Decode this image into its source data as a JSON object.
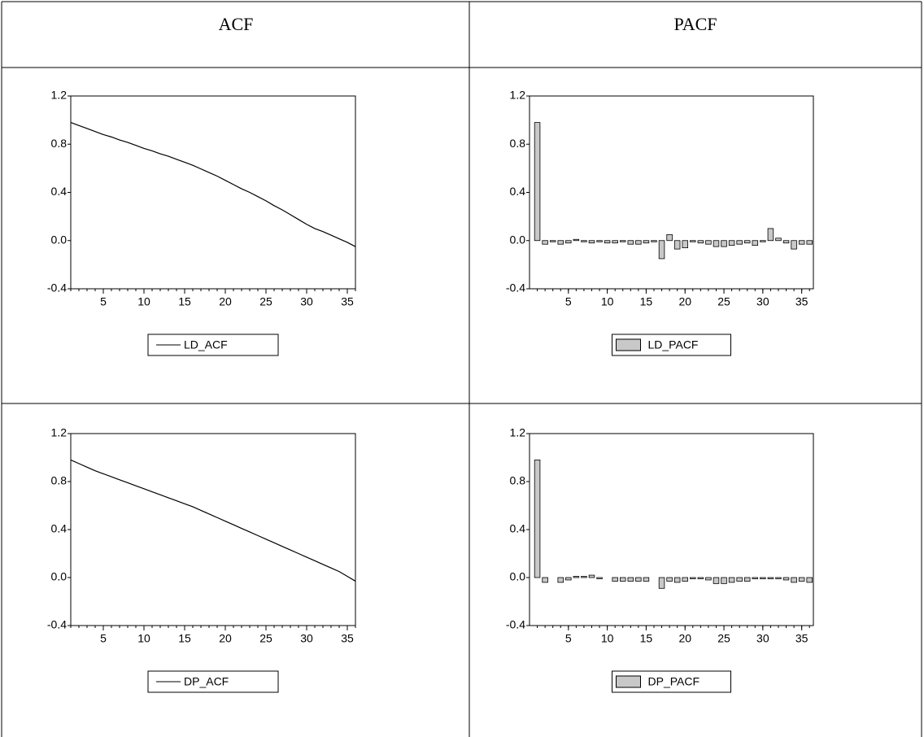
{
  "table": {
    "headers": [
      "ACF",
      "PACF"
    ]
  },
  "chart_data": [
    {
      "type": "line",
      "x": [
        1,
        2,
        3,
        4,
        5,
        6,
        7,
        8,
        9,
        10,
        11,
        12,
        13,
        14,
        15,
        16,
        17,
        18,
        19,
        20,
        21,
        22,
        23,
        24,
        25,
        26,
        27,
        28,
        29,
        30,
        31,
        32,
        33,
        34,
        35,
        36
      ],
      "series": [
        {
          "name": "LD_ACF",
          "color": "#000000",
          "values": [
            0.98,
            0.955,
            0.93,
            0.905,
            0.88,
            0.86,
            0.835,
            0.815,
            0.79,
            0.765,
            0.745,
            0.72,
            0.7,
            0.675,
            0.65,
            0.625,
            0.595,
            0.565,
            0.535,
            0.5,
            0.465,
            0.43,
            0.4,
            0.365,
            0.33,
            0.29,
            0.255,
            0.215,
            0.175,
            0.135,
            0.1,
            0.075,
            0.045,
            0.015,
            -0.015,
            -0.05
          ]
        }
      ],
      "xlim": [
        1,
        36
      ],
      "xticks": [
        5,
        10,
        15,
        20,
        25,
        30,
        35
      ],
      "ylim": [
        -0.4,
        1.2
      ],
      "yticks": [
        1.2,
        0.8,
        0.4,
        {
          "value": 0,
          "label": "0.0"
        },
        -0.4
      ]
    },
    {
      "type": "bar",
      "x": [
        1,
        2,
        3,
        4,
        5,
        6,
        7,
        8,
        9,
        10,
        11,
        12,
        13,
        14,
        15,
        16,
        17,
        18,
        19,
        20,
        21,
        22,
        23,
        24,
        25,
        26,
        27,
        28,
        29,
        30,
        31,
        32,
        33,
        34,
        35,
        36
      ],
      "series": [
        {
          "name": "LD_PACF",
          "color": "#c8c8c8",
          "values": [
            0.98,
            -0.03,
            -0.01,
            -0.03,
            -0.02,
            0.01,
            -0.01,
            -0.02,
            -0.01,
            -0.02,
            -0.02,
            -0.01,
            -0.03,
            -0.03,
            -0.02,
            -0.01,
            -0.15,
            0.05,
            -0.07,
            -0.06,
            -0.01,
            -0.02,
            -0.03,
            -0.05,
            -0.05,
            -0.04,
            -0.03,
            -0.02,
            -0.04,
            -0.01,
            0.1,
            0.02,
            -0.02,
            -0.07,
            -0.03,
            -0.03
          ]
        }
      ],
      "xlim": [
        0,
        36.5
      ],
      "xticks": [
        5,
        10,
        15,
        20,
        25,
        30,
        35
      ],
      "ylim": [
        -0.4,
        1.2
      ],
      "yticks": [
        1.2,
        0.8,
        0.4,
        {
          "value": 0,
          "label": "0.0"
        },
        -0.4
      ]
    },
    {
      "type": "line",
      "x": [
        1,
        2,
        3,
        4,
        5,
        6,
        7,
        8,
        9,
        10,
        11,
        12,
        13,
        14,
        15,
        16,
        17,
        18,
        19,
        20,
        21,
        22,
        23,
        24,
        25,
        26,
        27,
        28,
        29,
        30,
        31,
        32,
        33,
        34,
        35,
        36
      ],
      "series": [
        {
          "name": "DP_ACF",
          "color": "#000000",
          "values": [
            0.98,
            0.95,
            0.92,
            0.89,
            0.865,
            0.84,
            0.815,
            0.79,
            0.765,
            0.74,
            0.715,
            0.69,
            0.665,
            0.64,
            0.615,
            0.59,
            0.56,
            0.53,
            0.5,
            0.47,
            0.44,
            0.41,
            0.38,
            0.35,
            0.32,
            0.29,
            0.26,
            0.23,
            0.2,
            0.17,
            0.14,
            0.11,
            0.08,
            0.05,
            0.01,
            -0.03
          ]
        }
      ],
      "xlim": [
        1,
        36
      ],
      "xticks": [
        5,
        10,
        15,
        20,
        25,
        30,
        35
      ],
      "ylim": [
        -0.4,
        1.2
      ],
      "yticks": [
        1.2,
        0.8,
        0.4,
        {
          "value": 0,
          "label": "0.0"
        },
        -0.4
      ]
    },
    {
      "type": "bar",
      "x": [
        1,
        2,
        3,
        4,
        5,
        6,
        7,
        8,
        9,
        10,
        11,
        12,
        13,
        14,
        15,
        16,
        17,
        18,
        19,
        20,
        21,
        22,
        23,
        24,
        25,
        26,
        27,
        28,
        29,
        30,
        31,
        32,
        33,
        34,
        35,
        36
      ],
      "series": [
        {
          "name": "DP_PACF",
          "color": "#c8c8c8",
          "values": [
            0.98,
            -0.04,
            0.0,
            -0.04,
            -0.02,
            0.01,
            0.01,
            0.02,
            -0.01,
            0.0,
            -0.03,
            -0.03,
            -0.03,
            -0.03,
            -0.03,
            0.0,
            -0.09,
            -0.03,
            -0.04,
            -0.03,
            -0.01,
            -0.01,
            -0.02,
            -0.05,
            -0.05,
            -0.04,
            -0.03,
            -0.03,
            -0.01,
            -0.01,
            -0.01,
            -0.01,
            -0.02,
            -0.04,
            -0.03,
            -0.04
          ]
        }
      ],
      "xlim": [
        0,
        36.5
      ],
      "xticks": [
        5,
        10,
        15,
        20,
        25,
        30,
        35
      ],
      "ylim": [
        -0.4,
        1.2
      ],
      "yticks": [
        1.2,
        0.8,
        0.4,
        {
          "value": 0,
          "label": "0.0"
        },
        -0.4
      ]
    }
  ]
}
